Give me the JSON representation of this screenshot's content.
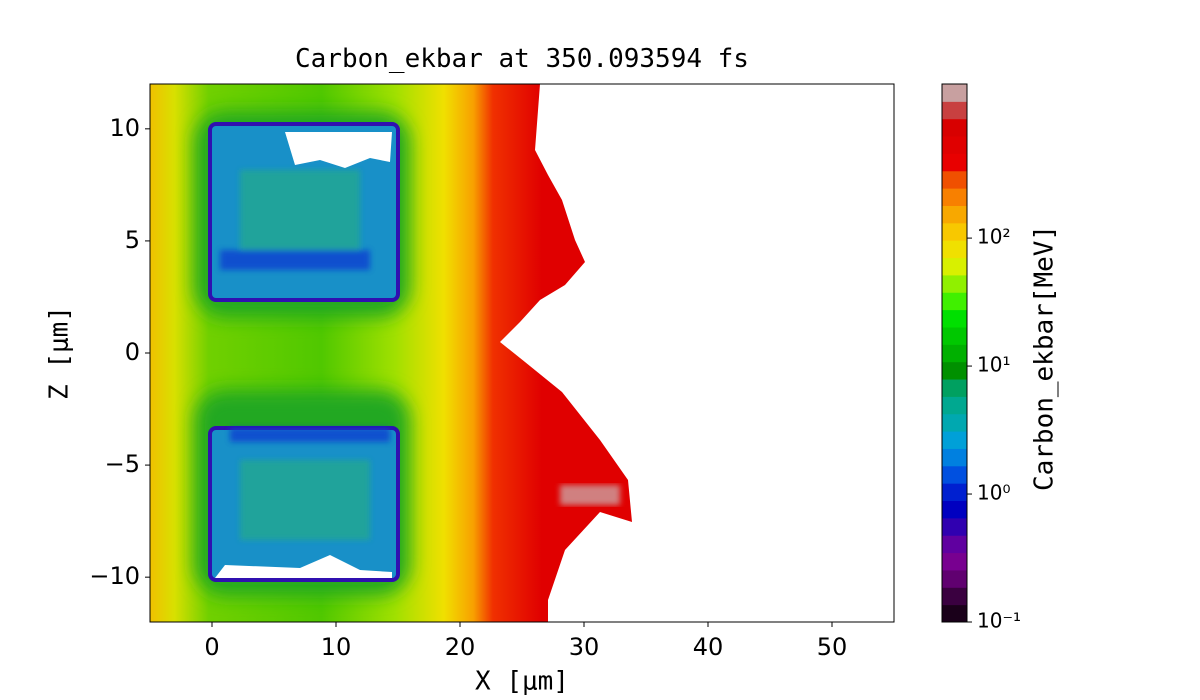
{
  "chart_data": {
    "type": "heatmap",
    "title": "Carbon_ekbar at 350.093594 fs",
    "xlabel": "X [μm]",
    "ylabel": "Z [μm]",
    "xlim": [
      -5,
      55
    ],
    "xticks": [
      0,
      10,
      20,
      30,
      40,
      50
    ],
    "ylim": [
      -12,
      12
    ],
    "yticks": [
      {
        "value": -10,
        "label": "−10"
      },
      {
        "value": -5,
        "label": "−5"
      },
      0,
      5,
      10
    ],
    "colorbar": {
      "label": "Carbon_ekbar[MeV]",
      "log": true,
      "lim": [
        0.1,
        1600
      ],
      "ticks": [
        {
          "value": 0.1,
          "label": "10⁻¹"
        },
        {
          "value": 1,
          "label": "10⁰"
        },
        {
          "value": 10,
          "label": "10¹"
        },
        {
          "value": 100,
          "label": "10²"
        }
      ],
      "colors": [
        "#1a001a",
        "#3a0040",
        "#600070",
        "#780090",
        "#6000a0",
        "#3000b0",
        "#0000c0",
        "#0020d0",
        "#0050e0",
        "#0080e0",
        "#00a0d8",
        "#00a8b0",
        "#00a890",
        "#00a060",
        "#009000",
        "#00b000",
        "#00c800",
        "#00e000",
        "#40f000",
        "#90f000",
        "#d8f000",
        "#f0e000",
        "#f8c800",
        "#f8a800",
        "#f88000",
        "#f05000",
        "#e80000",
        "#e00000",
        "#d80000",
        "#c84040",
        "#c8a0a0"
      ]
    }
  }
}
